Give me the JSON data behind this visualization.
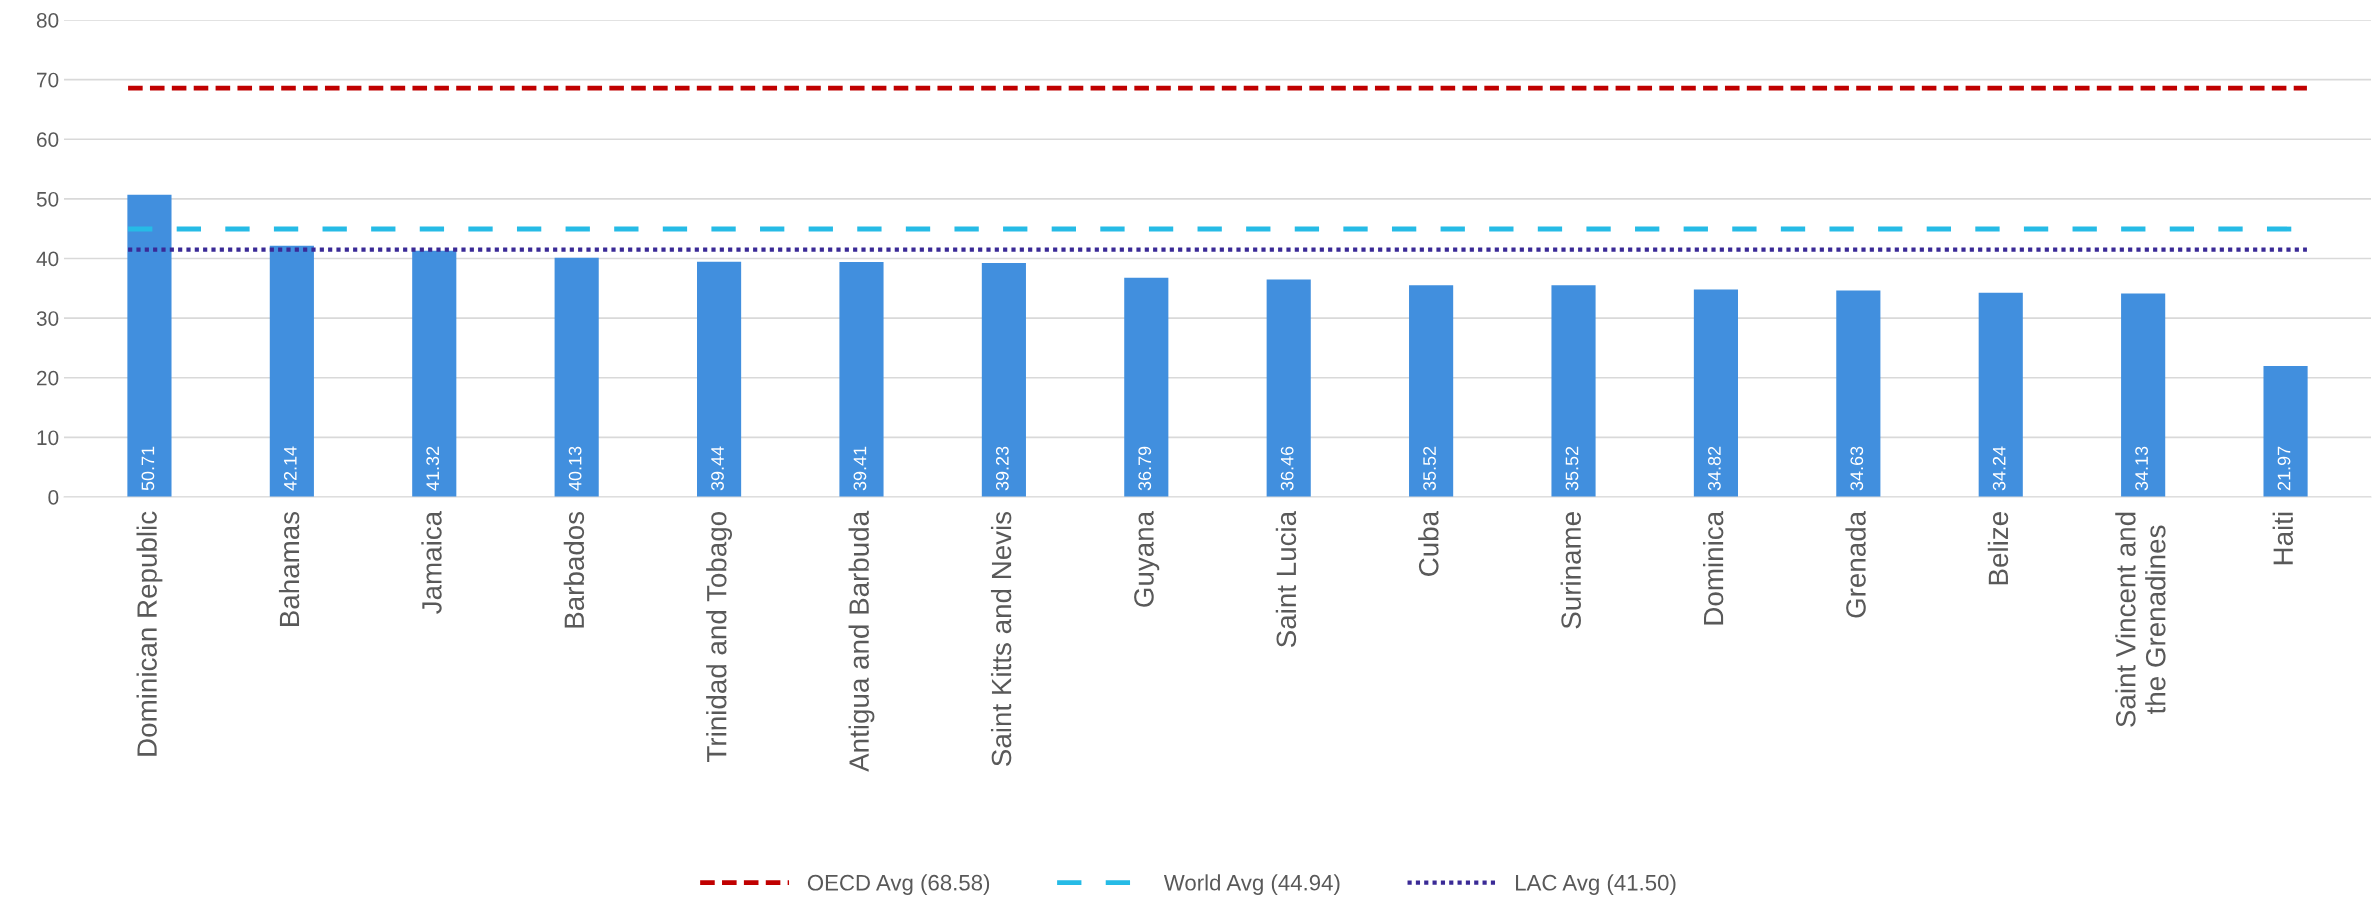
{
  "chart_data": {
    "type": "bar",
    "categories": [
      "Dominican Republic",
      "Bahamas",
      "Jamaica",
      "Barbados",
      "Trinidad and Tobago",
      "Antigua and Barbuda",
      "Saint Kitts and Nevis",
      "Guyana",
      "Saint Lucia",
      "Cuba",
      "Suriname",
      "Dominica",
      "Grenada",
      "Belize",
      "Saint Vincent and the Grenadines",
      "Haiti"
    ],
    "values": [
      50.71,
      42.14,
      41.32,
      40.13,
      39.44,
      39.41,
      39.23,
      36.79,
      36.46,
      35.52,
      35.52,
      34.82,
      34.63,
      34.24,
      34.13,
      21.97
    ],
    "color": "#418fde",
    "data_labels": true,
    "ylim": [
      0,
      80
    ],
    "yticks": [
      0,
      10,
      20,
      30,
      40,
      50,
      60,
      70,
      80
    ],
    "grid": "y",
    "legend": "bottom",
    "ref_lines": [
      {
        "axis": "y",
        "value": 68.58,
        "label": "OECD Avg (68.58)",
        "color": "#c00000",
        "line_style": "dashed"
      },
      {
        "axis": "y",
        "value": 44.94,
        "label": "World Avg (44.94)",
        "color": "#26bbe6",
        "line_style": "longdash"
      },
      {
        "axis": "y",
        "value": 41.5,
        "label": "LAC Avg (41.50)",
        "color": "#3a2a96",
        "line_style": "dotted"
      }
    ]
  }
}
